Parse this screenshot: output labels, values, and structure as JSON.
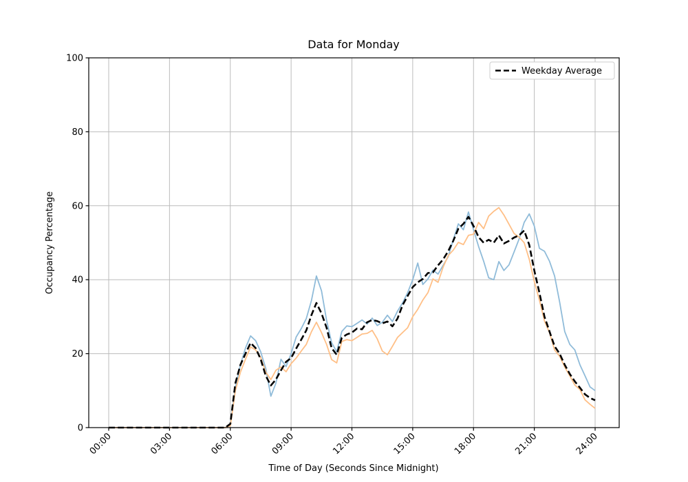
{
  "chart_data": {
    "type": "line",
    "title": "Data for Monday",
    "xlabel": "Time of Day (Seconds Since Midnight)",
    "ylabel": "Occupancy Percentage",
    "ylim": [
      0,
      100
    ],
    "xlim_seconds": [
      0,
      86400
    ],
    "grid": true,
    "grid_color": "#bbbbbb",
    "background_color": "#ffffff",
    "yticks": [
      0,
      20,
      40,
      60,
      80,
      100
    ],
    "xticks_seconds": [
      0,
      10800,
      21600,
      32400,
      43200,
      54000,
      64800,
      75600,
      86400
    ],
    "xtick_labels": [
      "00:00",
      "03:00",
      "06:00",
      "09:00",
      "12:00",
      "15:00",
      "18:00",
      "21:00",
      "24:00"
    ],
    "legend": {
      "position": "upper right",
      "entries": [
        {
          "label": "Weekday Average",
          "color": "#000000",
          "line_style": "dashed"
        }
      ]
    },
    "x_seconds": [
      0,
      900,
      1800,
      2700,
      3600,
      4500,
      5400,
      6300,
      7200,
      8100,
      9000,
      9900,
      10800,
      11700,
      12600,
      13500,
      14400,
      15300,
      16200,
      17100,
      18000,
      18900,
      19800,
      20700,
      21600,
      22500,
      23400,
      24300,
      25200,
      26100,
      27000,
      27900,
      28800,
      29700,
      30600,
      31500,
      32400,
      33300,
      34200,
      35100,
      36000,
      36900,
      37800,
      38700,
      39600,
      40500,
      41400,
      42300,
      43200,
      44100,
      45000,
      45900,
      46800,
      47700,
      48600,
      49500,
      50400,
      51300,
      52200,
      53100,
      54000,
      54900,
      55800,
      56700,
      57600,
      58500,
      59400,
      60300,
      61200,
      62100,
      63000,
      63900,
      64800,
      65700,
      66600,
      67500,
      68400,
      69300,
      70200,
      71100,
      72000,
      72900,
      73800,
      74700,
      75600,
      76500,
      77400,
      78300,
      79200,
      80100,
      81000,
      81900,
      82800,
      83700,
      84600,
      85500,
      86400
    ],
    "series": [
      {
        "name": "monday-series-1",
        "color": "#8fbbd9",
        "line_style": "solid",
        "line_width": 1.8,
        "in_legend": false,
        "values": [
          0,
          0,
          0,
          0,
          0,
          0,
          0,
          0,
          0,
          0,
          0,
          0,
          0,
          0,
          0,
          0,
          0,
          0,
          0,
          0,
          0,
          0,
          0,
          0,
          1,
          11,
          17,
          21.5,
          24.8,
          23.5,
          20.5,
          16,
          8.5,
          12,
          18.5,
          16.5,
          20,
          24.5,
          26.8,
          29.5,
          34.3,
          41,
          37,
          29,
          23,
          20.5,
          26,
          27.5,
          27.3,
          28.2,
          29.1,
          28,
          29.6,
          27.6,
          28.5,
          30.4,
          28.7,
          31.5,
          33.7,
          36.5,
          40,
          44.5,
          38.7,
          40.2,
          42.6,
          41.5,
          43.9,
          46.2,
          50.8,
          55.1,
          53.5,
          58.3,
          53.5,
          49,
          45,
          40.5,
          40,
          44.9,
          42.5,
          44,
          47.5,
          51,
          55.5,
          57.8,
          54.5,
          48.5,
          47.7,
          45,
          41,
          34,
          26,
          22.5,
          21,
          17,
          14,
          11,
          10
        ]
      },
      {
        "name": "monday-series-2",
        "color": "#ffbf86",
        "line_style": "solid",
        "line_width": 1.8,
        "in_legend": false,
        "values": [
          0,
          0,
          0,
          0,
          0,
          0,
          0,
          0,
          0,
          0,
          0,
          0,
          0,
          0,
          0,
          0,
          0,
          0,
          0,
          0,
          0,
          0,
          0,
          0,
          0.5,
          10,
          15,
          18.5,
          21.8,
          21,
          19,
          15,
          13,
          15.5,
          16.4,
          15.1,
          17.3,
          18.8,
          20.7,
          22.5,
          25.9,
          28.5,
          25.7,
          22.5,
          18.4,
          17.5,
          23.3,
          23.8,
          23.5,
          24.4,
          25.3,
          25.5,
          26.3,
          24,
          20.7,
          19.7,
          22,
          24.4,
          25.7,
          27,
          30,
          32,
          34.5,
          36.5,
          40.2,
          39.3,
          43.4,
          46.5,
          48,
          50.1,
          49.5,
          52,
          52.3,
          55.5,
          53.8,
          57.2,
          58.5,
          59.5,
          57.5,
          55,
          52.5,
          51.5,
          50,
          45.5,
          39.5,
          34.5,
          28.8,
          25.7,
          21,
          19.3,
          16.4,
          14,
          11.5,
          10.3,
          7.5,
          6.3,
          5.2
        ]
      },
      {
        "name": "weekday-average",
        "color": "#000000",
        "line_style": "dashed",
        "line_width": 2.6,
        "in_legend": true,
        "values": [
          0,
          0,
          0,
          0,
          0,
          0,
          0,
          0,
          0,
          0,
          0,
          0,
          0,
          0,
          0,
          0,
          0,
          0,
          0,
          0,
          0,
          0,
          0,
          0,
          1,
          12,
          17,
          20,
          22.9,
          21.5,
          18.5,
          14,
          11.4,
          13,
          15.5,
          17.8,
          18.8,
          21.4,
          23.8,
          26.3,
          30.4,
          33.7,
          30.9,
          27,
          21.5,
          19.7,
          24.3,
          25.2,
          25.7,
          26.8,
          26.6,
          28.5,
          29.1,
          28.8,
          28.2,
          28.7,
          27.4,
          29.5,
          33.1,
          35.6,
          38,
          39.3,
          40.2,
          41.8,
          42,
          43.9,
          45.5,
          47.7,
          50.5,
          53.8,
          55.1,
          57,
          54.5,
          51.5,
          50,
          50.8,
          50,
          52,
          49.8,
          50.5,
          51.4,
          52,
          53.3,
          49.4,
          42.5,
          36.5,
          30,
          26,
          22,
          20,
          17,
          14.5,
          12.5,
          10.8,
          9,
          8,
          7.4
        ]
      }
    ]
  }
}
